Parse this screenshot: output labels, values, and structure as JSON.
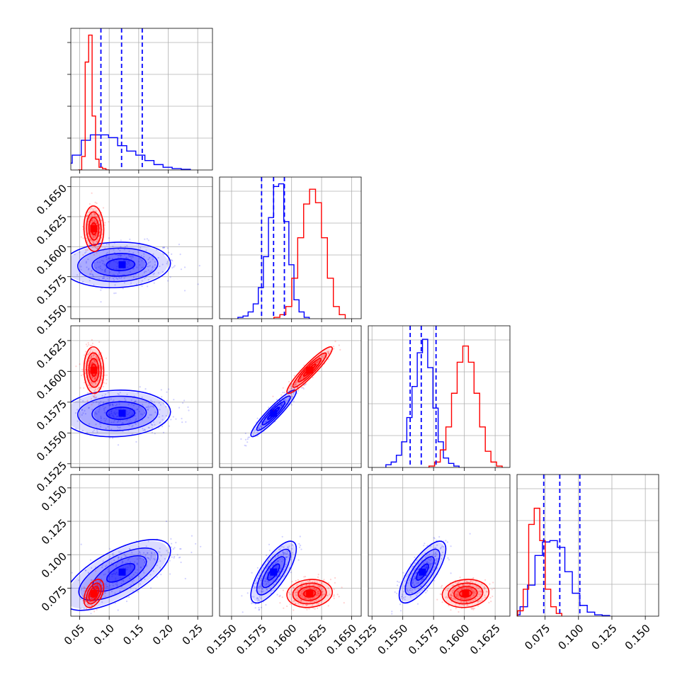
{
  "colors": {
    "blue": "#0000ff",
    "red": "#ff0000",
    "grid": "#b0b0b0",
    "frame": "#000000"
  },
  "chart_data": {
    "type": "corner",
    "grid": true,
    "parameters": [
      {
        "range": [
          0.035,
          0.275
        ],
        "ticks": [
          0.05,
          0.1,
          0.15,
          0.2,
          0.25
        ],
        "tick_labels": [
          "0.05",
          "0.10",
          "0.15",
          "0.20",
          "0.25"
        ]
      },
      {
        "range": [
          0.154,
          0.1658
        ],
        "ticks": [
          0.155,
          0.1575,
          0.16,
          0.1625,
          0.165
        ],
        "tick_labels": [
          "0.1550",
          "0.1575",
          "0.1600",
          "0.1625",
          "0.1650"
        ]
      },
      {
        "range": [
          0.1522,
          0.1637
        ],
        "ticks": [
          0.1525,
          0.155,
          0.1575,
          0.16,
          0.1625
        ],
        "tick_labels": [
          "0.1525",
          "0.1550",
          "0.1575",
          "0.1600",
          "0.1625"
        ]
      },
      {
        "range": [
          0.054,
          0.16
        ],
        "ticks": [
          0.075,
          0.1,
          0.125,
          0.15
        ],
        "tick_labels": [
          "0.075",
          "0.100",
          "0.125",
          "0.150"
        ]
      }
    ],
    "quantiles": [
      [
        0.086,
        0.121,
        0.156
      ],
      [
        0.1575,
        0.1585,
        0.1594
      ],
      [
        0.1556,
        0.1565,
        0.1577
      ],
      [
        0.074,
        0.086,
        0.101
      ]
    ],
    "series": [
      {
        "color": "#0000ff",
        "means": [
          0.122,
          0.1585,
          0.1566,
          0.087
        ],
        "sds": [
          0.035,
          0.0009,
          0.0009,
          0.011
        ],
        "hists": [
          [
            0.01,
            0.05,
            0.11,
            0.22,
            0.26,
            0.26,
            0.24,
            0.18,
            0.14,
            0.11,
            0.07,
            0.04,
            0.02,
            0.01,
            0.005
          ],
          [
            0.01,
            0.02,
            0.05,
            0.11,
            0.23,
            0.46,
            0.75,
            0.98,
            1.0,
            0.72,
            0.4,
            0.14,
            0.05,
            0.01
          ],
          [
            0.02,
            0.04,
            0.09,
            0.19,
            0.37,
            0.6,
            0.85,
            0.95,
            0.74,
            0.44,
            0.19,
            0.07,
            0.03,
            0.01
          ],
          [
            0.01,
            0.07,
            0.23,
            0.45,
            0.55,
            0.56,
            0.51,
            0.33,
            0.17,
            0.08,
            0.03,
            0.01,
            0.005
          ]
        ]
      },
      {
        "color": "#ff0000",
        "means": [
          0.074,
          0.1615,
          0.1601,
          0.071
        ],
        "sds": [
          0.008,
          0.0009,
          0.0009,
          0.005
        ],
        "hists": [
          [
            0.0,
            0.1,
            0.8,
            1.0,
            0.4,
            0.08,
            0.02,
            0.01,
            0.0
          ],
          [
            0.01,
            0.03,
            0.09,
            0.3,
            0.6,
            0.85,
            0.96,
            0.86,
            0.6,
            0.3,
            0.09,
            0.03
          ],
          [
            0.01,
            0.04,
            0.13,
            0.3,
            0.55,
            0.78,
            0.9,
            0.78,
            0.55,
            0.3,
            0.12,
            0.04,
            0.01
          ],
          [
            0.04,
            0.2,
            0.68,
            0.8,
            0.56,
            0.2,
            0.07,
            0.02
          ]
        ]
      }
    ],
    "correlations": [
      {
        "pair": [
          1,
          0
        ],
        "blue": 0.05,
        "red": -0.05
      },
      {
        "pair": [
          2,
          0
        ],
        "blue": 0.05,
        "red": -0.05
      },
      {
        "pair": [
          2,
          1
        ],
        "blue": 0.93,
        "red": 0.93
      },
      {
        "pair": [
          3,
          0
        ],
        "blue": 0.55,
        "red": 0.45
      },
      {
        "pair": [
          3,
          1
        ],
        "blue": 0.75,
        "red": 0.1
      },
      {
        "pair": [
          3,
          2
        ],
        "blue": 0.75,
        "red": 0.1
      }
    ]
  }
}
